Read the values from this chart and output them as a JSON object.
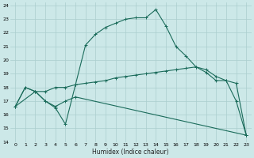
{
  "xlabel": "Humidex (Indice chaleur)",
  "bg_color": "#cce8e8",
  "grid_color": "#aacece",
  "line_color": "#1a6b5a",
  "xlim": [
    -0.5,
    23.5
  ],
  "ylim": [
    14,
    24.2
  ],
  "xticks": [
    0,
    1,
    2,
    3,
    4,
    5,
    6,
    7,
    8,
    9,
    10,
    11,
    12,
    13,
    14,
    15,
    16,
    17,
    18,
    19,
    20,
    21,
    22,
    23
  ],
  "yticks": [
    14,
    15,
    16,
    17,
    18,
    19,
    20,
    21,
    22,
    23,
    24
  ],
  "curve1_x": [
    0,
    1,
    2,
    3,
    4,
    5,
    6,
    7,
    8,
    9,
    10,
    11,
    12,
    13,
    14,
    15,
    16,
    17,
    18,
    19,
    20,
    21,
    22,
    23
  ],
  "curve1_y": [
    16.6,
    18.0,
    17.7,
    17.0,
    16.5,
    15.3,
    18.2,
    21.1,
    21.9,
    22.4,
    22.7,
    23.0,
    23.1,
    23.1,
    23.7,
    22.5,
    21.0,
    20.3,
    19.5,
    19.1,
    18.5,
    18.5,
    17.0,
    14.5
  ],
  "curve2_x": [
    0,
    1,
    2,
    3,
    4,
    5,
    6,
    7,
    8,
    9,
    10,
    11,
    12,
    13,
    14,
    15,
    16,
    17,
    18,
    19,
    20,
    21,
    22,
    23
  ],
  "curve2_y": [
    16.6,
    18.0,
    17.7,
    17.7,
    18.0,
    18.0,
    18.2,
    18.3,
    18.4,
    18.5,
    18.7,
    18.8,
    18.9,
    19.0,
    19.1,
    19.2,
    19.3,
    19.4,
    19.5,
    19.3,
    18.8,
    18.5,
    18.3,
    14.5
  ],
  "curve3_x": [
    0,
    2,
    3,
    4,
    5,
    6,
    23
  ],
  "curve3_y": [
    16.6,
    17.7,
    17.0,
    16.6,
    17.0,
    17.3,
    14.5
  ],
  "marker": "+"
}
